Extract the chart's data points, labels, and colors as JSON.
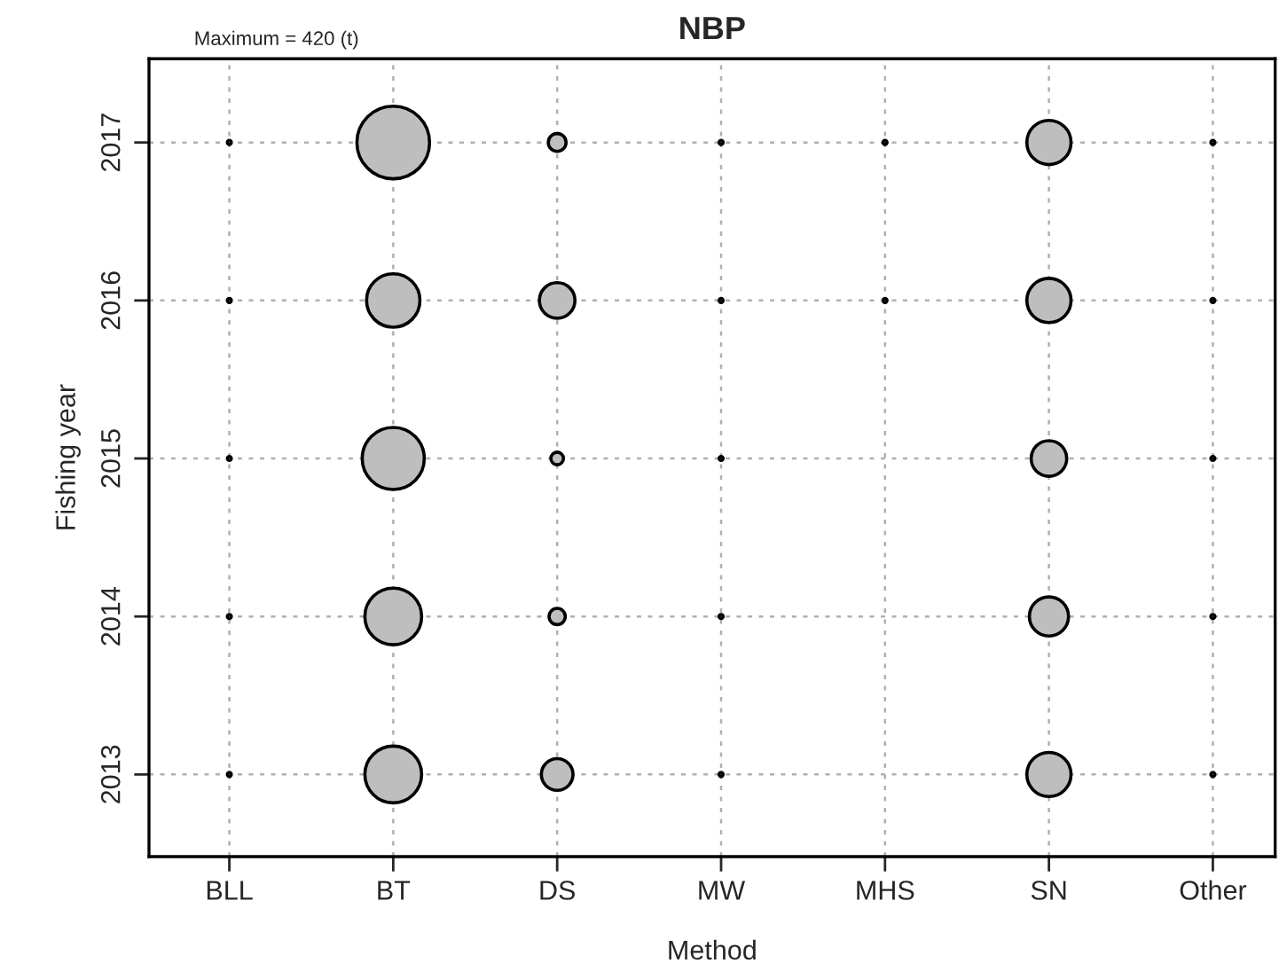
{
  "chart_data": {
    "type": "bubble",
    "title": "NBP",
    "xlabel": "Method",
    "ylabel": "Fishing year",
    "annotations": [
      "Maximum = 420 (t)"
    ],
    "categories": [
      "BLL",
      "BT",
      "DS",
      "MW",
      "MHS",
      "SN",
      "Other"
    ],
    "ylim": [
      2012.48,
      2017.53
    ],
    "yticks": [
      2013,
      2014,
      2015,
      2016,
      2017
    ],
    "grid": true,
    "legend": false,
    "series": [
      {
        "color": "#bebebe",
        "values": [
          2017,
          2017,
          2017,
          2017,
          2017,
          2017,
          2017
        ],
        "sizes": [
          0.003,
          1,
          0.06,
          0.003,
          0.003,
          0.37,
          0.003
        ]
      },
      {
        "color": "#bebebe",
        "values": [
          2016,
          2016,
          2016,
          2016,
          2016,
          2016,
          2016
        ],
        "sizes": [
          0.003,
          0.54,
          0.24,
          0.003,
          0.003,
          0.37,
          0.003
        ]
      },
      {
        "color": "#bebebe",
        "values": [
          2015,
          2015,
          2015,
          2015,
          null,
          2015,
          2015
        ],
        "sizes": [
          0.003,
          0.73,
          0.03,
          0.003,
          null,
          0.24,
          0.003
        ]
      },
      {
        "color": "#bebebe",
        "values": [
          2014,
          2014,
          2014,
          2014,
          null,
          2014,
          2014
        ],
        "sizes": [
          0.003,
          0.61,
          0.05,
          0.003,
          null,
          0.29,
          0.003
        ]
      },
      {
        "color": "#bebebe",
        "values": [
          2013,
          2013,
          2013,
          2013,
          null,
          2013,
          2013
        ],
        "sizes": [
          0.003,
          0.61,
          0.19,
          0.003,
          null,
          0.37,
          0.003
        ]
      }
    ]
  }
}
